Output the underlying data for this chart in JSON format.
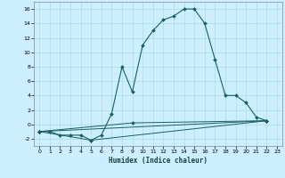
{
  "xlabel": "Humidex (Indice chaleur)",
  "bg_color": "#cceeff",
  "grid_color": "#aadddd",
  "line_color": "#1a6060",
  "xlim": [
    -0.5,
    23.5
  ],
  "ylim": [
    -3,
    17
  ],
  "xticks": [
    0,
    1,
    2,
    3,
    4,
    5,
    6,
    7,
    8,
    9,
    10,
    11,
    12,
    13,
    14,
    15,
    16,
    17,
    18,
    19,
    20,
    21,
    22,
    23
  ],
  "yticks": [
    -2,
    0,
    2,
    4,
    6,
    8,
    10,
    12,
    14,
    16
  ],
  "series_main": [
    [
      0,
      -1
    ],
    [
      1,
      -1
    ],
    [
      2,
      -1.5
    ],
    [
      3,
      -1.5
    ],
    [
      4,
      -1.5
    ],
    [
      5,
      -2.2
    ],
    [
      6,
      -1.5
    ],
    [
      7,
      1.5
    ],
    [
      8,
      8
    ],
    [
      9,
      4.5
    ],
    [
      10,
      11
    ],
    [
      11,
      13
    ],
    [
      12,
      14.5
    ],
    [
      13,
      15
    ],
    [
      14,
      16
    ],
    [
      15,
      16
    ],
    [
      16,
      14
    ],
    [
      17,
      9
    ],
    [
      18,
      4
    ],
    [
      19,
      4
    ],
    [
      20,
      3
    ],
    [
      21,
      1
    ],
    [
      22,
      0.5
    ]
  ],
  "series2": [
    [
      0,
      -1
    ],
    [
      5,
      -2.2
    ],
    [
      22,
      0.5
    ]
  ],
  "series3": [
    [
      0,
      -1
    ],
    [
      9,
      0.2
    ],
    [
      22,
      0.5
    ]
  ],
  "series4": [
    [
      0,
      -1
    ],
    [
      22,
      0.5
    ]
  ]
}
